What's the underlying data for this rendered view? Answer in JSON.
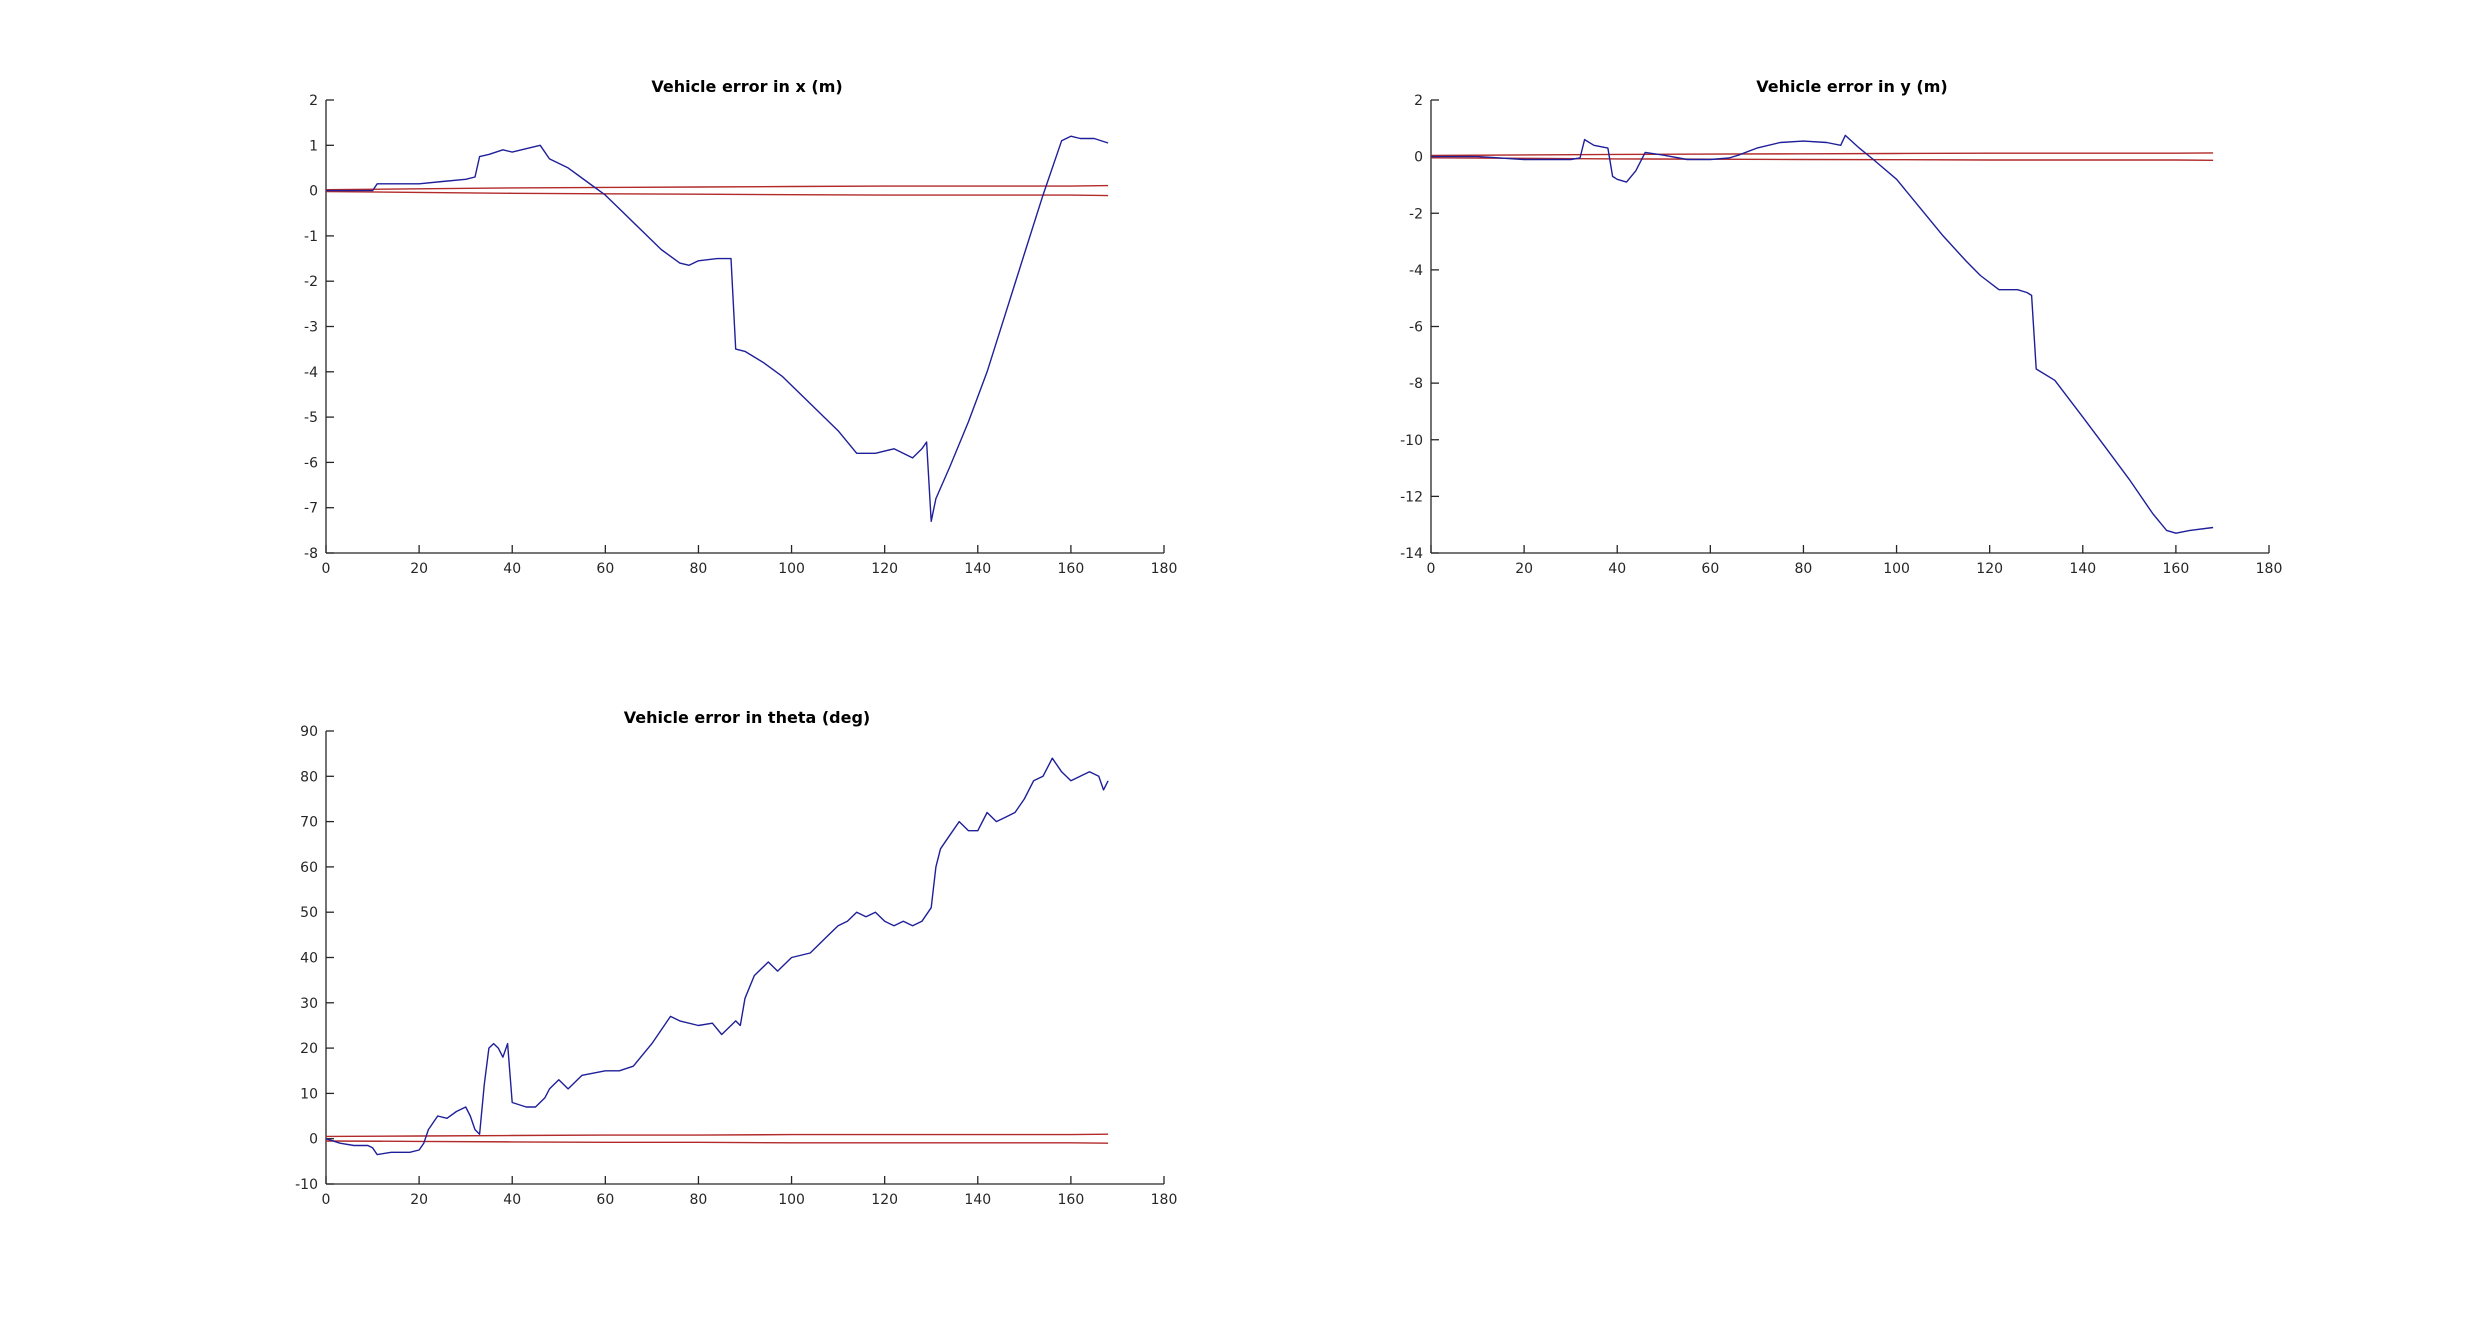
{
  "colors": {
    "error": "#1f1f9a",
    "bound": "#b22a2a",
    "axis": "#262626"
  },
  "chart_data": [
    {
      "type": "line",
      "title": "Vehicle error in x (m)",
      "xlim": [
        0,
        180
      ],
      "ylim": [
        -8,
        2
      ],
      "xticks": [
        0,
        20,
        40,
        60,
        80,
        100,
        120,
        140,
        160,
        180
      ],
      "yticks": [
        -8,
        -7,
        -6,
        -5,
        -4,
        -3,
        -2,
        -1,
        0,
        1,
        2
      ],
      "grid": false,
      "series": [
        {
          "color": "#1f1f9a",
          "x": [
            0,
            5,
            10,
            11,
            15,
            20,
            25,
            30,
            32,
            33,
            35,
            38,
            40,
            44,
            46,
            48,
            52,
            56,
            60,
            64,
            68,
            72,
            76,
            78,
            80,
            84,
            87,
            88,
            90,
            94,
            98,
            102,
            106,
            110,
            114,
            118,
            122,
            126,
            128,
            129,
            130,
            131,
            134,
            138,
            142,
            146,
            150,
            154,
            158,
            160,
            162,
            165,
            168
          ],
          "y": [
            0,
            0,
            0,
            0.15,
            0.15,
            0.15,
            0.2,
            0.25,
            0.3,
            0.75,
            0.8,
            0.9,
            0.85,
            0.95,
            1.0,
            0.7,
            0.5,
            0.2,
            -0.1,
            -0.5,
            -0.9,
            -1.3,
            -1.6,
            -1.65,
            -1.55,
            -1.5,
            -1.5,
            -3.5,
            -3.55,
            -3.8,
            -4.1,
            -4.5,
            -4.9,
            -5.3,
            -5.8,
            -5.8,
            -5.7,
            -5.9,
            -5.7,
            -5.55,
            -7.3,
            -6.8,
            -6.1,
            -5.1,
            -4.0,
            -2.7,
            -1.4,
            -0.1,
            1.1,
            1.2,
            1.15,
            1.15,
            1.05
          ]
        },
        {
          "color": "#b22a2a",
          "x": [
            0,
            20,
            40,
            60,
            80,
            100,
            120,
            140,
            160,
            168
          ],
          "y": [
            0.02,
            0.04,
            0.06,
            0.07,
            0.08,
            0.09,
            0.1,
            0.1,
            0.1,
            0.11
          ]
        },
        {
          "color": "#b22a2a",
          "x": [
            0,
            20,
            40,
            60,
            80,
            100,
            120,
            140,
            160,
            168
          ],
          "y": [
            -0.02,
            -0.04,
            -0.06,
            -0.07,
            -0.08,
            -0.09,
            -0.1,
            -0.1,
            -0.1,
            -0.11
          ]
        }
      ]
    },
    {
      "type": "line",
      "title": "Vehicle error in y (m)",
      "xlim": [
        0,
        180
      ],
      "ylim": [
        -14,
        2
      ],
      "xticks": [
        0,
        20,
        40,
        60,
        80,
        100,
        120,
        140,
        160,
        180
      ],
      "yticks": [
        -14,
        -12,
        -10,
        -8,
        -6,
        -4,
        -2,
        0,
        2
      ],
      "grid": false,
      "series": [
        {
          "color": "#1f1f9a",
          "x": [
            0,
            10,
            20,
            30,
            32,
            33,
            35,
            38,
            39,
            40,
            42,
            44,
            46,
            50,
            55,
            60,
            64,
            66,
            70,
            75,
            80,
            85,
            88,
            89,
            92,
            95,
            100,
            105,
            110,
            115,
            118,
            122,
            126,
            128,
            129,
            130,
            134,
            140,
            145,
            150,
            155,
            158,
            160,
            163,
            168
          ],
          "y": [
            0,
            0,
            -0.1,
            -0.1,
            -0.05,
            0.6,
            0.4,
            0.3,
            -0.7,
            -0.8,
            -0.9,
            -0.5,
            0.15,
            0.05,
            -0.1,
            -0.1,
            -0.05,
            0.05,
            0.3,
            0.5,
            0.55,
            0.5,
            0.4,
            0.75,
            0.3,
            -0.1,
            -0.8,
            -1.8,
            -2.8,
            -3.7,
            -4.2,
            -4.7,
            -4.7,
            -4.8,
            -4.9,
            -7.5,
            -7.9,
            -9.2,
            -10.3,
            -11.4,
            -12.6,
            -13.2,
            -13.3,
            -13.2,
            -13.1
          ]
        },
        {
          "color": "#b22a2a",
          "x": [
            0,
            20,
            40,
            60,
            80,
            100,
            120,
            140,
            160,
            168
          ],
          "y": [
            0.04,
            0.06,
            0.08,
            0.09,
            0.1,
            0.11,
            0.12,
            0.12,
            0.12,
            0.13
          ]
        },
        {
          "color": "#b22a2a",
          "x": [
            0,
            20,
            40,
            60,
            80,
            100,
            120,
            140,
            160,
            168
          ],
          "y": [
            -0.04,
            -0.06,
            -0.08,
            -0.09,
            -0.1,
            -0.11,
            -0.12,
            -0.12,
            -0.12,
            -0.13
          ]
        }
      ]
    },
    {
      "type": "line",
      "title": "Vehicle error in theta (deg)",
      "xlim": [
        0,
        180
      ],
      "ylim": [
        -10,
        90
      ],
      "xticks": [
        0,
        20,
        40,
        60,
        80,
        100,
        120,
        140,
        160,
        180
      ],
      "yticks": [
        -10,
        0,
        10,
        20,
        30,
        40,
        50,
        60,
        70,
        80,
        90
      ],
      "grid": false,
      "series": [
        {
          "color": "#1f1f9a",
          "x": [
            0,
            3,
            6,
            9,
            10,
            11,
            14,
            18,
            20,
            21,
            22,
            24,
            26,
            28,
            30,
            31,
            32,
            33,
            34,
            35,
            36,
            37,
            38,
            39,
            40,
            43,
            45,
            47,
            48,
            50,
            52,
            55,
            60,
            63,
            66,
            70,
            72,
            74,
            76,
            80,
            83,
            85,
            87,
            88,
            89,
            90,
            92,
            95,
            97,
            100,
            104,
            106,
            108,
            110,
            112,
            114,
            116,
            118,
            120,
            122,
            124,
            126,
            128,
            130,
            131,
            132,
            134,
            136,
            138,
            140,
            142,
            144,
            146,
            148,
            150,
            152,
            154,
            156,
            158,
            160,
            164,
            166,
            167,
            168
          ],
          "y": [
            0,
            -1,
            -1.5,
            -1.5,
            -2,
            -3.5,
            -3,
            -3,
            -2.5,
            -1,
            2,
            5,
            4.5,
            6,
            7,
            5,
            2,
            1,
            12,
            20,
            21,
            20,
            18,
            21,
            8,
            7,
            7,
            9,
            11,
            13,
            11,
            14,
            15,
            15,
            16,
            21,
            24,
            27,
            26,
            25,
            25.5,
            23,
            25,
            26,
            25,
            31,
            36,
            39,
            37,
            40,
            41,
            43,
            45,
            47,
            48,
            50,
            49,
            50,
            48,
            47,
            48,
            47,
            48,
            51,
            60,
            64,
            67,
            70,
            68,
            68,
            72,
            70,
            71,
            72,
            75,
            79,
            80,
            84,
            81,
            79,
            81,
            80,
            77,
            79
          ]
        },
        {
          "color": "#b22a2a",
          "x": [
            0,
            20,
            40,
            60,
            80,
            100,
            120,
            140,
            160,
            168
          ],
          "y": [
            0.5,
            0.6,
            0.7,
            0.8,
            0.8,
            0.9,
            0.9,
            0.9,
            0.9,
            1.0
          ]
        },
        {
          "color": "#b22a2a",
          "x": [
            0,
            20,
            40,
            60,
            80,
            100,
            120,
            140,
            160,
            168
          ],
          "y": [
            -0.5,
            -0.6,
            -0.7,
            -0.8,
            -0.8,
            -0.9,
            -0.9,
            -0.9,
            -0.9,
            -1.0
          ]
        }
      ]
    }
  ]
}
